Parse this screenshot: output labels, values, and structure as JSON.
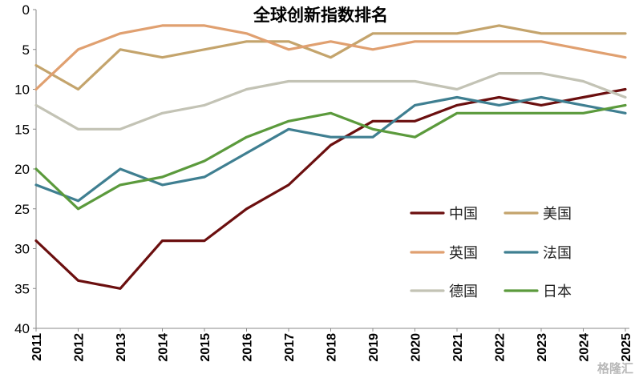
{
  "chart_data": {
    "type": "line",
    "title": "全球创新指数排名",
    "xlabel": "",
    "ylabel": "",
    "x": [
      "2011",
      "2012",
      "2013",
      "2014",
      "2015",
      "2016",
      "2017",
      "2018",
      "2019",
      "2020",
      "2021",
      "2022",
      "2023",
      "2024",
      "2025"
    ],
    "ylim": [
      0,
      40
    ],
    "y_inverted": true,
    "y_ticks": [
      "0",
      "5",
      "10",
      "15",
      "20",
      "25",
      "30",
      "35",
      "40"
    ],
    "grid": false,
    "legend_position": "bottom-right",
    "series": [
      {
        "name": "中国",
        "color": "#6b0f0f",
        "values": [
          29,
          34,
          35,
          29,
          29,
          25,
          22,
          17,
          14,
          14,
          12,
          11,
          12,
          11,
          10
        ]
      },
      {
        "name": "美国",
        "color": "#c4a46c",
        "values": [
          7,
          10,
          5,
          6,
          5,
          4,
          4,
          6,
          3,
          3,
          3,
          2,
          3,
          3,
          3
        ]
      },
      {
        "name": "英国",
        "color": "#e0a070",
        "values": [
          10,
          5,
          3,
          2,
          2,
          3,
          5,
          4,
          5,
          4,
          4,
          4,
          4,
          5,
          6
        ]
      },
      {
        "name": "法国",
        "color": "#3f7f91",
        "values": [
          22,
          24,
          20,
          22,
          21,
          18,
          15,
          16,
          16,
          12,
          11,
          12,
          11,
          12,
          13
        ]
      },
      {
        "name": "德国",
        "color": "#c3c3b5",
        "values": [
          12,
          15,
          15,
          13,
          12,
          10,
          9,
          9,
          9,
          9,
          10,
          8,
          8,
          9,
          11
        ]
      },
      {
        "name": "日本",
        "color": "#5b9a3c",
        "values": [
          20,
          25,
          22,
          21,
          19,
          16,
          14,
          13,
          15,
          16,
          13,
          13,
          13,
          13,
          12
        ]
      }
    ]
  },
  "watermark": "格隆汇"
}
